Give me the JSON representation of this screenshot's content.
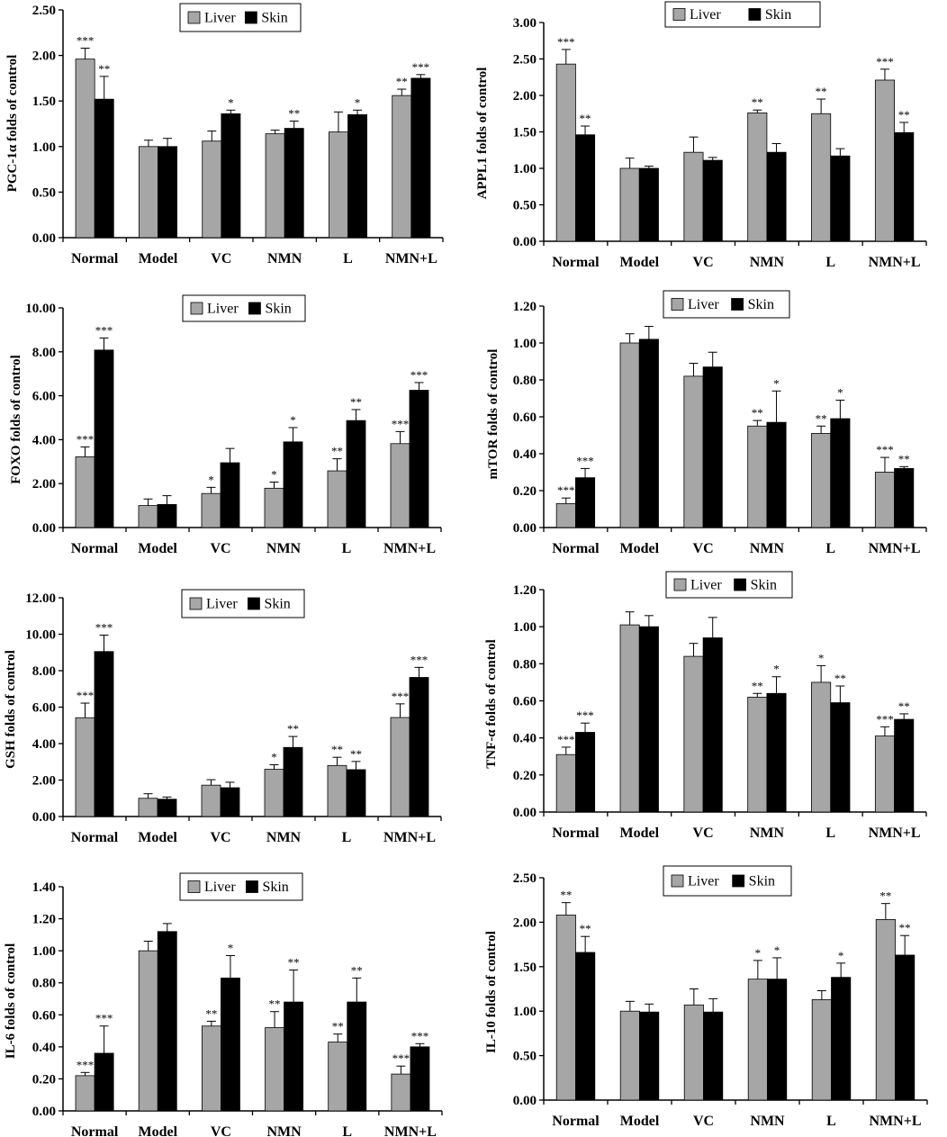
{
  "colors": {
    "liver": "#a6a6a6",
    "skin": "#000000",
    "axis": "#000000"
  },
  "legend": [
    "Liver",
    "Skin"
  ],
  "chart_data": [
    {
      "type": "bar",
      "ylabel": "PGC-1α folds of  control",
      "categories": [
        "Normal",
        "Model",
        "VC",
        "NMN",
        "L",
        "NMN+L"
      ],
      "ylim": [
        0,
        2.5
      ],
      "yticks": [
        "0.00",
        "0.50",
        "1.00",
        "1.50",
        "2.00",
        "2.50"
      ],
      "legend_position": "top-center",
      "series": [
        {
          "name": "Liver",
          "values": [
            1.96,
            1.0,
            1.06,
            1.14,
            1.16,
            1.56
          ],
          "errors": [
            0.12,
            0.07,
            0.11,
            0.04,
            0.22,
            0.07
          ],
          "stars": [
            "***",
            "",
            "",
            "",
            "",
            "**"
          ]
        },
        {
          "name": "Skin",
          "values": [
            1.52,
            1.0,
            1.36,
            1.2,
            1.35,
            1.75
          ],
          "errors": [
            0.25,
            0.09,
            0.04,
            0.08,
            0.05,
            0.04
          ],
          "stars": [
            "**",
            "",
            "*",
            "**",
            "*",
            "***"
          ]
        }
      ]
    },
    {
      "type": "bar",
      "ylabel": "APPL1 folds of  control",
      "categories": [
        "Normal",
        "Model",
        "VC",
        "NMN",
        "L",
        "NMN+L"
      ],
      "ylim": [
        0,
        3.0
      ],
      "yticks": [
        "0.00",
        "0.50",
        "1.00",
        "1.50",
        "2.00",
        "2.50",
        "3.00"
      ],
      "legend_position": "top-center",
      "series": [
        {
          "name": "Liver",
          "values": [
            2.43,
            1.0,
            1.22,
            1.76,
            1.75,
            2.21
          ],
          "errors": [
            0.2,
            0.14,
            0.21,
            0.04,
            0.2,
            0.15
          ],
          "stars": [
            "***",
            "",
            "",
            "**",
            "**",
            "***"
          ]
        },
        {
          "name": "Skin",
          "values": [
            1.46,
            1.0,
            1.11,
            1.22,
            1.17,
            1.49
          ],
          "errors": [
            0.12,
            0.03,
            0.04,
            0.12,
            0.1,
            0.14
          ],
          "stars": [
            "**",
            "",
            "",
            "",
            "",
            "**"
          ]
        }
      ]
    },
    {
      "type": "bar",
      "ylabel": "FOXO folds of  control",
      "categories": [
        "Normal",
        "Model",
        "VC",
        "NMN",
        "L",
        "NMN+L"
      ],
      "ylim": [
        0,
        10.0
      ],
      "yticks": [
        "0.00",
        "2.00",
        "4.00",
        "6.00",
        "8.00",
        "10.00"
      ],
      "legend_position": "top-center",
      "series": [
        {
          "name": "Liver",
          "values": [
            3.22,
            1.0,
            1.55,
            1.79,
            2.58,
            3.82
          ],
          "errors": [
            0.45,
            0.3,
            0.28,
            0.28,
            0.55,
            0.55
          ],
          "stars": [
            "***",
            "",
            "*",
            "*",
            "**",
            "***"
          ]
        },
        {
          "name": "Skin",
          "values": [
            8.08,
            1.05,
            2.95,
            3.9,
            4.87,
            6.25
          ],
          "errors": [
            0.55,
            0.4,
            0.65,
            0.65,
            0.5,
            0.35
          ],
          "stars": [
            "***",
            "",
            "",
            "*",
            "**",
            "***"
          ]
        }
      ]
    },
    {
      "type": "bar",
      "ylabel": "mTOR folds of  control",
      "categories": [
        "Normal",
        "Model",
        "VC",
        "NMN",
        "L",
        "NMN+L"
      ],
      "ylim": [
        0,
        1.2
      ],
      "yticks": [
        "0.00",
        "0.20",
        "0.40",
        "0.60",
        "0.80",
        "1.00",
        "1.20"
      ],
      "legend_position": "top-center",
      "series": [
        {
          "name": "Liver",
          "values": [
            0.13,
            1.0,
            0.82,
            0.55,
            0.51,
            0.3
          ],
          "errors": [
            0.03,
            0.05,
            0.07,
            0.03,
            0.04,
            0.08
          ],
          "stars": [
            "***",
            "",
            "",
            "**",
            "**",
            "***"
          ]
        },
        {
          "name": "Skin",
          "values": [
            0.27,
            1.02,
            0.87,
            0.57,
            0.59,
            0.32
          ],
          "errors": [
            0.05,
            0.07,
            0.08,
            0.17,
            0.1,
            0.01
          ],
          "stars": [
            "***",
            "",
            "",
            "*",
            "*",
            "**"
          ]
        }
      ]
    },
    {
      "type": "bar",
      "ylabel": "GSH folds of  control",
      "categories": [
        "Normal",
        "Model",
        "VC",
        "NMN",
        "L",
        "NMN+L"
      ],
      "ylim": [
        0,
        12.0
      ],
      "yticks": [
        "0.00",
        "2.00",
        "4.00",
        "6.00",
        "8.00",
        "10.00",
        "12.00"
      ],
      "legend_position": "top-center",
      "series": [
        {
          "name": "Liver",
          "values": [
            5.42,
            1.0,
            1.72,
            2.59,
            2.8,
            5.43
          ],
          "errors": [
            0.8,
            0.25,
            0.3,
            0.25,
            0.45,
            0.75
          ],
          "stars": [
            "***",
            "",
            "",
            "*",
            "**",
            "***"
          ]
        },
        {
          "name": "Skin",
          "values": [
            9.05,
            0.95,
            1.58,
            3.79,
            2.57,
            7.63
          ],
          "errors": [
            0.9,
            0.12,
            0.3,
            0.6,
            0.45,
            0.55
          ],
          "stars": [
            "***",
            "",
            "",
            "**",
            "**",
            "***"
          ]
        }
      ]
    },
    {
      "type": "bar",
      "ylabel": "TNF-α folds of  control",
      "categories": [
        "Normal",
        "Model",
        "VC",
        "NMN",
        "L",
        "NMN+L"
      ],
      "ylim": [
        0,
        1.2
      ],
      "yticks": [
        "0.00",
        "0.20",
        "0.40",
        "0.60",
        "0.80",
        "1.00",
        "1.20"
      ],
      "legend_position": "top-center",
      "series": [
        {
          "name": "Liver",
          "values": [
            0.31,
            1.01,
            0.84,
            0.62,
            0.7,
            0.41
          ],
          "errors": [
            0.04,
            0.07,
            0.07,
            0.02,
            0.09,
            0.05
          ],
          "stars": [
            "***",
            "",
            "",
            "**",
            "*",
            "***"
          ]
        },
        {
          "name": "Skin",
          "values": [
            0.43,
            1.0,
            0.94,
            0.64,
            0.59,
            0.5
          ],
          "errors": [
            0.05,
            0.06,
            0.11,
            0.09,
            0.09,
            0.03
          ],
          "stars": [
            "***",
            "",
            "",
            "*",
            "**",
            "**"
          ]
        }
      ]
    },
    {
      "type": "bar",
      "ylabel": "IL-6 folds of  control",
      "categories": [
        "Normal",
        "Model",
        "VC",
        "NMN",
        "L",
        "NMN+L"
      ],
      "ylim": [
        0,
        1.4
      ],
      "yticks": [
        "0.00",
        "0.20",
        "0.40",
        "0.60",
        "0.80",
        "1.00",
        "1.20",
        "1.40"
      ],
      "legend_position": "top-center",
      "series": [
        {
          "name": "Liver",
          "values": [
            0.22,
            1.0,
            0.53,
            0.52,
            0.43,
            0.23
          ],
          "errors": [
            0.02,
            0.06,
            0.03,
            0.1,
            0.05,
            0.05
          ],
          "stars": [
            "***",
            "",
            "**",
            "**",
            "**",
            "***"
          ]
        },
        {
          "name": "Skin",
          "values": [
            0.36,
            1.12,
            0.83,
            0.68,
            0.68,
            0.4
          ],
          "errors": [
            0.17,
            0.05,
            0.14,
            0.2,
            0.15,
            0.02
          ],
          "stars": [
            "***",
            "",
            "*",
            "**",
            "**",
            "***"
          ]
        }
      ]
    },
    {
      "type": "bar",
      "ylabel": "IL-10 folds of  control",
      "categories": [
        "Normal",
        "Model",
        "VC",
        "NMN",
        "L",
        "NMN+L"
      ],
      "ylim": [
        0,
        2.5
      ],
      "yticks": [
        "0.00",
        "0.50",
        "1.00",
        "1.50",
        "2.00",
        "2.50"
      ],
      "legend_position": "top-center",
      "series": [
        {
          "name": "Liver",
          "values": [
            2.08,
            1.0,
            1.07,
            1.36,
            1.13,
            2.03
          ],
          "errors": [
            0.14,
            0.11,
            0.18,
            0.21,
            0.1,
            0.18
          ],
          "stars": [
            "**",
            "",
            "",
            "*",
            "",
            "**"
          ]
        },
        {
          "name": "Skin",
          "values": [
            1.66,
            0.99,
            0.99,
            1.36,
            1.38,
            1.63
          ],
          "errors": [
            0.18,
            0.09,
            0.15,
            0.24,
            0.16,
            0.22
          ],
          "stars": [
            "**",
            "",
            "",
            "*",
            "*",
            "**"
          ]
        }
      ]
    }
  ]
}
